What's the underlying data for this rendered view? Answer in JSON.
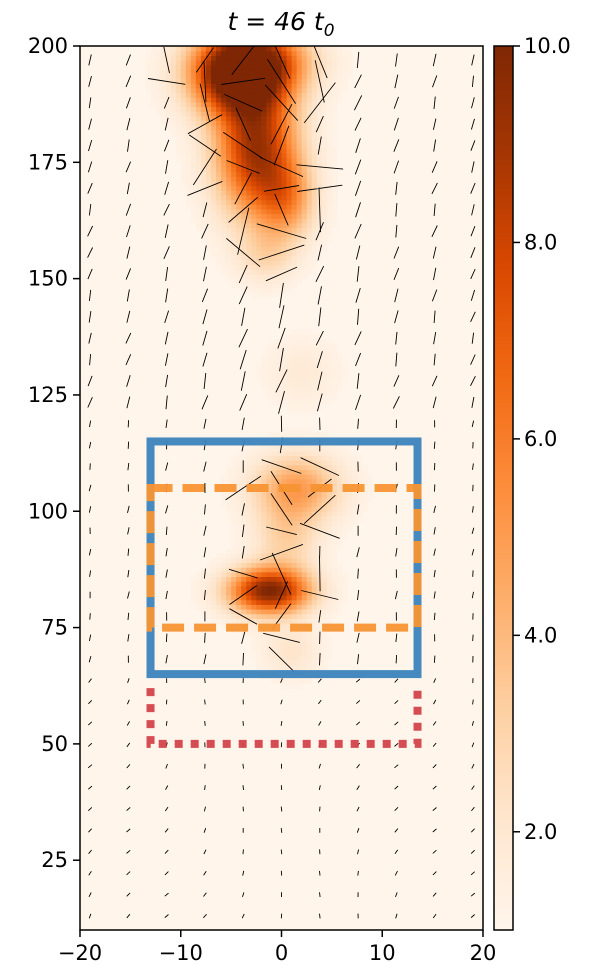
{
  "chart_data": {
    "type": "heatmap",
    "title_prefix": "t = 46 t",
    "title_subscript": "0",
    "xlim": [
      -20,
      20
    ],
    "ylim": [
      10,
      200
    ],
    "x_ticks": [
      -20,
      -10,
      0,
      10,
      20
    ],
    "x_tick_labels": [
      "−20",
      "−10",
      "0",
      "10",
      "20"
    ],
    "y_ticks": [
      25,
      50,
      75,
      100,
      125,
      150,
      175,
      200
    ],
    "y_tick_labels": [
      "25",
      "50",
      "75",
      "100",
      "125",
      "150",
      "175",
      "200"
    ],
    "colorbar": {
      "range": [
        1.0,
        10.0
      ],
      "ticks": [
        2,
        4,
        6,
        8,
        10
      ],
      "tick_labels": [
        "2.0",
        "4.0",
        "6.0",
        "8.0",
        "10.0"
      ],
      "colormap": "Oranges"
    },
    "density_blobs": [
      {
        "x": -4.5,
        "y": 194,
        "sx": 3.2,
        "sy": 6,
        "amp": 9.0
      },
      {
        "x": -2.0,
        "y": 197,
        "sx": 3.5,
        "sy": 5,
        "amp": 5.0
      },
      {
        "x": -2.5,
        "y": 178,
        "sx": 2.8,
        "sy": 10,
        "amp": 8.0
      },
      {
        "x": 0.5,
        "y": 167,
        "sx": 2.0,
        "sy": 6,
        "amp": 3.5
      },
      {
        "x": -1.5,
        "y": 155,
        "sx": 2.0,
        "sy": 4,
        "amp": 1.5
      },
      {
        "x": 2.0,
        "y": 130,
        "sx": 2.5,
        "sy": 5,
        "amp": 0.8
      },
      {
        "x": 1.5,
        "y": 105,
        "sx": 3.0,
        "sy": 5,
        "amp": 4.0
      },
      {
        "x": 0.5,
        "y": 94,
        "sx": 2.2,
        "sy": 5,
        "amp": 2.0
      },
      {
        "x": -1.2,
        "y": 83,
        "sx": 2.8,
        "sy": 3.5,
        "amp": 9.0
      },
      {
        "x": 1.0,
        "y": 70,
        "sx": 2.0,
        "sy": 4,
        "amp": 1.2
      }
    ],
    "regions": [
      {
        "style": "solid",
        "color": "#3b83bd",
        "x": [
          -13,
          13.5
        ],
        "y": [
          65,
          115
        ]
      },
      {
        "style": "dashed",
        "color": "#f79433",
        "x": [
          -13,
          13.5
        ],
        "y": [
          75,
          105
        ]
      },
      {
        "style": "dotted",
        "color": "#d3424a",
        "x": [
          -13,
          13.5
        ],
        "y": [
          50,
          62
        ]
      }
    ]
  }
}
